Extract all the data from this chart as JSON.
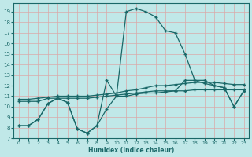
{
  "bg_color": "#c0e8e8",
  "grid_color": "#dba8a8",
  "line_color": "#1a6868",
  "xlabel": "Humidex (Indice chaleur)",
  "xlim": [
    -0.5,
    23.5
  ],
  "ylim": [
    7,
    19.8
  ],
  "xticks": [
    0,
    1,
    2,
    3,
    4,
    5,
    6,
    7,
    8,
    9,
    10,
    11,
    12,
    13,
    14,
    15,
    16,
    17,
    18,
    19,
    20,
    21,
    22,
    23
  ],
  "yticks": [
    7,
    8,
    9,
    10,
    11,
    12,
    13,
    14,
    15,
    16,
    17,
    18,
    19
  ],
  "curve_peak": [
    8.2,
    8.2,
    8.8,
    10.3,
    10.8,
    10.4,
    7.9,
    7.5,
    8.2,
    9.8,
    11.0,
    19.0,
    19.3,
    19.0,
    18.5,
    17.2,
    17.0,
    15.0,
    12.5,
    12.5,
    12.0,
    11.8,
    10.0,
    11.5
  ],
  "curve_wavy": [
    8.2,
    8.2,
    8.8,
    10.3,
    10.8,
    10.4,
    7.9,
    7.5,
    8.2,
    12.5,
    11.0,
    11.0,
    11.2,
    11.3,
    11.3,
    11.4,
    11.5,
    12.5,
    12.5,
    12.2,
    12.0,
    11.8,
    10.0,
    11.5
  ],
  "curve_flat1": [
    10.5,
    10.5,
    10.5,
    10.8,
    10.8,
    10.8,
    10.8,
    10.8,
    10.9,
    11.0,
    11.1,
    11.2,
    11.3,
    11.4,
    11.5,
    11.5,
    11.5,
    11.5,
    11.6,
    11.6,
    11.6,
    11.6,
    11.6,
    11.6
  ],
  "curve_flat2": [
    10.7,
    10.7,
    10.8,
    10.9,
    11.0,
    11.0,
    11.0,
    11.0,
    11.1,
    11.2,
    11.3,
    11.5,
    11.6,
    11.8,
    12.0,
    12.0,
    12.1,
    12.2,
    12.3,
    12.3,
    12.3,
    12.2,
    12.1,
    12.1
  ]
}
